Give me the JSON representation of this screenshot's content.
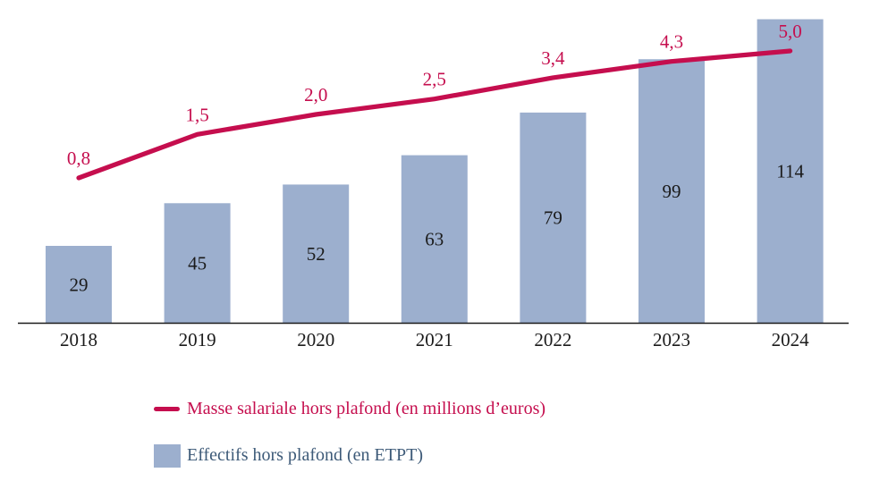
{
  "chart_data": {
    "type": "combo",
    "title": "",
    "xlabel": "",
    "ylabel": "",
    "grid": false,
    "legend_position": "bottom-left",
    "categories": [
      "2018",
      "2019",
      "2020",
      "2021",
      "2022",
      "2023",
      "2024"
    ],
    "series": [
      {
        "name": "Masse salariale hors plafond (en millions d’euros)",
        "type": "line",
        "values": [
          0.8,
          1.5,
          2.0,
          2.5,
          3.4,
          4.3,
          5.0
        ],
        "value_labels": [
          "0,8",
          "1,5",
          "2,0",
          "2,5",
          "3,4",
          "4,3",
          "5,0"
        ],
        "color": "#c50e4e"
      },
      {
        "name": "Effectifs hors plafond (en ETPT)",
        "type": "bar",
        "values": [
          29,
          45,
          52,
          63,
          79,
          99,
          114
        ],
        "value_labels": [
          "29",
          "45",
          "52",
          "63",
          "79",
          "99",
          "114"
        ],
        "color": "#9cafce"
      }
    ],
    "x_axis": {
      "visible": true,
      "color": "#1a1a1a"
    },
    "y_axis": {
      "visible": false
    },
    "bar_label_color": "#1b1b1b",
    "category_label_color": "#1b1b1b",
    "legend": {
      "line_text_color": "#c50e4e",
      "bar_text_color": "#3d5a78"
    }
  }
}
